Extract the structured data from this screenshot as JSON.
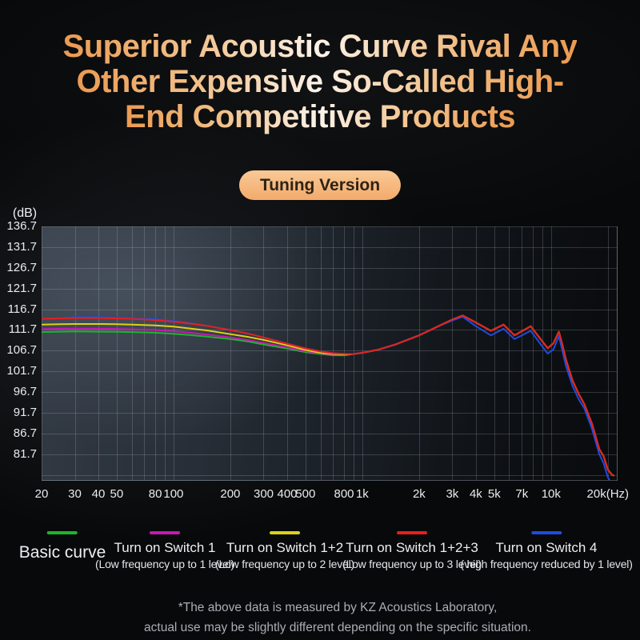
{
  "title": {
    "lines": [
      "Superior Acoustic Curve Rival Any",
      "Other Expensive So-Called High-",
      "End Competitive Products"
    ]
  },
  "badge": {
    "label": "Tuning Version"
  },
  "chart": {
    "y_axis_unit": "(dB)",
    "y_ticks": [
      "136.7",
      "131.7",
      "126.7",
      "121.7",
      "116.7",
      "111.7",
      "106.7",
      "101.7",
      "96.7",
      "91.7",
      "86.7",
      "81.7"
    ],
    "x_ticks": [
      {
        "label": "20",
        "f": 20
      },
      {
        "label": "30",
        "f": 30
      },
      {
        "label": "40",
        "f": 40
      },
      {
        "label": "50",
        "f": 50
      },
      {
        "label": "80",
        "f": 80
      },
      {
        "label": "100",
        "f": 100
      },
      {
        "label": "200",
        "f": 200
      },
      {
        "label": "300",
        "f": 300
      },
      {
        "label": "400",
        "f": 400
      },
      {
        "label": "500",
        "f": 500
      },
      {
        "label": "800",
        "f": 800
      },
      {
        "label": "1k",
        "f": 1000
      },
      {
        "label": "2k",
        "f": 2000
      },
      {
        "label": "3k",
        "f": 3000
      },
      {
        "label": "4k",
        "f": 4000
      },
      {
        "label": "5k",
        "f": 5000
      },
      {
        "label": "7k",
        "f": 7000
      },
      {
        "label": "10k",
        "f": 10000
      },
      {
        "label": "20k(Hz)",
        "f": 20000
      }
    ]
  },
  "chart_data": {
    "type": "line",
    "xscale": "log",
    "grid": true,
    "title": "",
    "xlabel": "(Hz)",
    "ylabel": "(dB)",
    "xlim": [
      20,
      22300
    ],
    "ylim": [
      75.5,
      136.7
    ],
    "legend_position": "bottom",
    "y_gridlines": [
      136.7,
      131.7,
      126.7,
      121.7,
      116.7,
      111.7,
      106.7,
      101.7,
      96.7,
      91.7,
      86.7,
      81.7,
      76.7
    ],
    "x_gridlines": [
      20,
      30,
      40,
      50,
      60,
      70,
      80,
      90,
      100,
      200,
      300,
      400,
      500,
      600,
      700,
      800,
      900,
      1000,
      2000,
      3000,
      4000,
      5000,
      6000,
      7000,
      8000,
      9000,
      10000,
      20000
    ],
    "x": [
      20,
      25,
      30,
      40,
      50,
      60,
      80,
      100,
      125,
      150,
      200,
      250,
      300,
      400,
      500,
      600,
      700,
      800,
      900,
      1000,
      1200,
      1500,
      2000,
      2500,
      3000,
      3400,
      4000,
      4800,
      5600,
      6400,
      7800,
      8800,
      9600,
      10300,
      11000,
      11500,
      12000,
      13000,
      14000,
      15000,
      16500,
      18000,
      19000,
      20000,
      21000,
      21400
    ],
    "series": [
      {
        "id": "basic-curve",
        "name": "Basic curve",
        "color": "#1cb52c",
        "values": [
          111.2,
          111.3,
          111.35,
          111.3,
          111.25,
          111.2,
          111.05,
          110.8,
          110.45,
          110.1,
          109.5,
          108.9,
          108.2,
          107.2,
          106.35,
          105.9,
          105.6,
          105.55,
          105.9,
          106.2,
          106.9,
          108.2,
          110.4,
          112.5,
          114.2,
          115.2,
          113.5,
          111.5,
          113.0,
          110.4,
          112.6,
          109.5,
          107.3,
          108.5,
          111.3,
          108.0,
          104.5,
          99.5,
          96.3,
          93.8,
          89.0,
          83.0,
          81.2,
          78.0,
          76.8,
          76.6
        ]
      },
      {
        "id": "switch-1",
        "name": "Turn on Switch 1",
        "color": "#c519b0",
        "values": [
          111.9,
          112.0,
          112.0,
          112.0,
          111.95,
          111.85,
          111.7,
          111.4,
          111.0,
          110.6,
          109.9,
          109.25,
          108.6,
          107.5,
          106.6,
          106.05,
          105.75,
          105.7,
          105.9,
          106.2,
          106.9,
          108.2,
          110.4,
          112.5,
          114.2,
          115.2,
          113.5,
          111.5,
          113.0,
          110.4,
          112.6,
          109.5,
          107.3,
          108.5,
          111.3,
          108.0,
          104.5,
          99.5,
          96.3,
          93.8,
          89.0,
          83.0,
          81.2,
          78.0,
          76.8,
          76.6
        ]
      },
      {
        "id": "switch-1-2",
        "name": "Turn on Switch 1+2",
        "color": "#ddd116",
        "values": [
          113.0,
          113.1,
          113.15,
          113.15,
          113.1,
          113.0,
          112.8,
          112.5,
          112.0,
          111.6,
          110.7,
          110.0,
          109.3,
          108.0,
          106.9,
          106.2,
          105.9,
          105.8,
          105.9,
          106.2,
          106.9,
          108.2,
          110.4,
          112.5,
          114.2,
          115.2,
          113.5,
          111.5,
          113.0,
          110.4,
          112.6,
          109.5,
          107.3,
          108.5,
          111.3,
          108.0,
          104.5,
          99.5,
          96.3,
          93.8,
          89.0,
          83.0,
          81.2,
          78.0,
          76.8,
          76.6
        ]
      },
      {
        "id": "switch-4",
        "name": "Turn on Switch 4",
        "color": "#1f4be0",
        "values": [
          114.4,
          114.5,
          114.8,
          114.8,
          114.7,
          114.6,
          114.3,
          113.9,
          113.3,
          112.7,
          111.7,
          110.8,
          109.9,
          108.4,
          107.25,
          106.5,
          106.1,
          105.95,
          105.9,
          106.2,
          106.9,
          108.2,
          110.4,
          112.5,
          114.0,
          114.9,
          112.6,
          110.4,
          112.0,
          109.5,
          111.5,
          108.3,
          106.0,
          107.0,
          110.2,
          106.6,
          103.0,
          98.2,
          95.0,
          92.8,
          87.8,
          81.8,
          79.5,
          76.2,
          74.3,
          74.0
        ]
      },
      {
        "id": "switch-1-2-3",
        "name": "Turn on Switch 1+2+3",
        "color": "#e4201e",
        "values": [
          114.4,
          114.5,
          114.6,
          114.6,
          114.5,
          114.4,
          114.1,
          113.7,
          113.2,
          112.7,
          111.7,
          110.8,
          109.9,
          108.4,
          107.25,
          106.5,
          106.1,
          105.95,
          105.9,
          106.2,
          106.9,
          108.2,
          110.4,
          112.5,
          114.2,
          115.2,
          113.5,
          111.5,
          113.0,
          110.4,
          112.6,
          109.5,
          107.3,
          108.5,
          111.3,
          108.0,
          104.5,
          99.5,
          96.3,
          93.8,
          89.0,
          83.0,
          81.2,
          78.0,
          76.8,
          76.6
        ]
      }
    ]
  },
  "legend": {
    "items": [
      {
        "id": "basic-curve",
        "color": "#1cb52c",
        "label": "Basic curve",
        "sublabel": ""
      },
      {
        "id": "switch-1",
        "color": "#c519b0",
        "label": "Turn on Switch 1",
        "sublabel": "(Low frequency up to 1 level)"
      },
      {
        "id": "switch-1-2",
        "color": "#ddd116",
        "label": "Turn on Switch 1+2",
        "sublabel": "(Low frequency up to 2 level)"
      },
      {
        "id": "switch-1-2-3",
        "color": "#e4201e",
        "label": "Turn on Switch 1+2+3",
        "sublabel": "(Low frequency up to 3 level)"
      },
      {
        "id": "switch-4",
        "color": "#1f4be0",
        "label": "Turn on Switch 4",
        "sublabel": "( high frequency reduced by 1 level)"
      }
    ]
  },
  "footer": {
    "lines": [
      "*The above data is measured by KZ Acoustics Laboratory,",
      "actual use may be slightly different depending on the specific situation."
    ]
  }
}
